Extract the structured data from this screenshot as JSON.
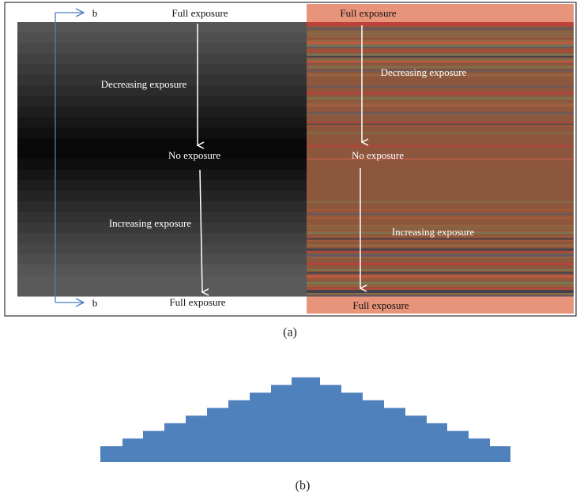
{
  "panel_a": {
    "left": {
      "top": "Full exposure",
      "decreasing": "Decreasing exposure",
      "none": "No exposure",
      "increasing": "Increasing exposure",
      "bottom": "Full exposure",
      "b_top": "b",
      "b_bottom": "b"
    },
    "right": {
      "top": "Full exposure",
      "decreasing": "Decreasing exposure",
      "none": "No exposure",
      "increasing": "Increasing exposure",
      "bottom": "Full exposure"
    },
    "caption": "(a)"
  },
  "panel_b": {
    "caption": "(b)"
  }
}
